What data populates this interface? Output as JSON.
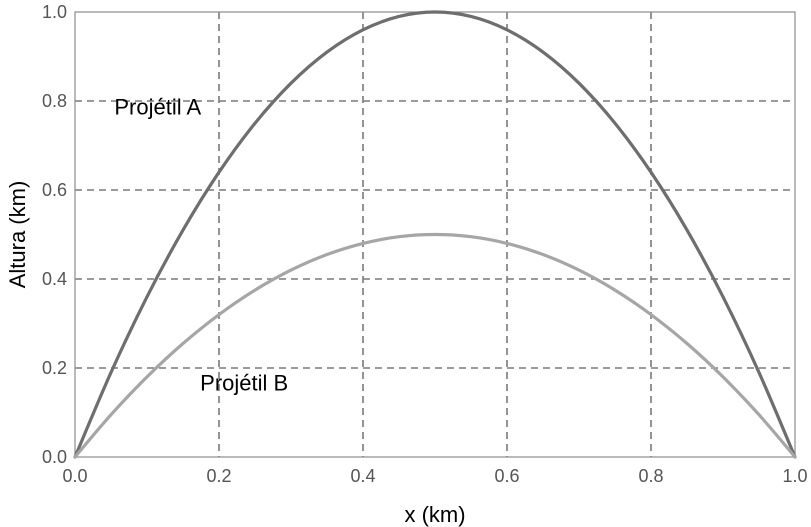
{
  "chart_data": {
    "type": "line",
    "xlabel": "x (km)",
    "ylabel": "Altura (km)",
    "xlim": [
      0,
      1
    ],
    "ylim": [
      0,
      1
    ],
    "xticks": [
      "0.0",
      "0.2",
      "0.4",
      "0.6",
      "0.8",
      "1.0"
    ],
    "yticks": [
      "0.0",
      "0.2",
      "0.4",
      "0.6",
      "0.8",
      "1.0"
    ],
    "grid": true,
    "grid_style": "dashed",
    "series": [
      {
        "color": "#6e6e6e",
        "x": [
          0.0,
          0.05,
          0.1,
          0.15,
          0.2,
          0.25,
          0.3,
          0.35,
          0.4,
          0.45,
          0.5,
          0.55,
          0.6,
          0.65,
          0.7,
          0.75,
          0.8,
          0.85,
          0.9,
          0.95,
          1.0
        ],
        "y": [
          0.0,
          0.19,
          0.36,
          0.51,
          0.64,
          0.75,
          0.84,
          0.91,
          0.96,
          0.99,
          1.0,
          0.99,
          0.96,
          0.91,
          0.84,
          0.75,
          0.64,
          0.51,
          0.36,
          0.19,
          0.0
        ]
      },
      {
        "color": "#a6a6a6",
        "x": [
          0.0,
          0.05,
          0.1,
          0.15,
          0.2,
          0.25,
          0.3,
          0.35,
          0.4,
          0.45,
          0.5,
          0.55,
          0.6,
          0.65,
          0.7,
          0.75,
          0.8,
          0.85,
          0.9,
          0.95,
          1.0
        ],
        "y": [
          0.0,
          0.095,
          0.18,
          0.255,
          0.32,
          0.375,
          0.42,
          0.455,
          0.48,
          0.495,
          0.5,
          0.495,
          0.48,
          0.455,
          0.42,
          0.375,
          0.32,
          0.255,
          0.18,
          0.095,
          0.0
        ]
      }
    ],
    "annotations": [
      {
        "text": "Projétil A",
        "x": 0.115,
        "y": 0.77
      },
      {
        "text": "Projétil B",
        "x": 0.235,
        "y": 0.15
      }
    ]
  }
}
